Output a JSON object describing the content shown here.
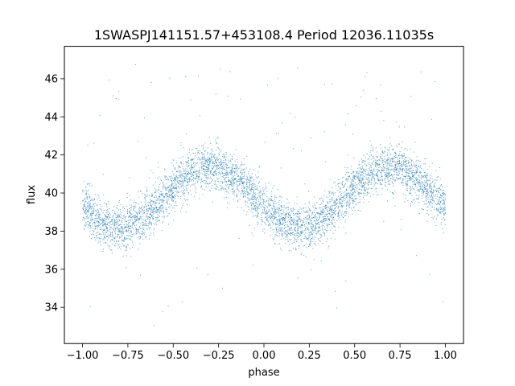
{
  "chart_data": {
    "type": "scatter",
    "title": "1SWASPJ141151.57+453108.4 Period 12036.11035s",
    "xlabel": "phase",
    "ylabel": "flux",
    "xlim": [
      -1.1,
      1.1
    ],
    "ylim": [
      32.1,
      47.7
    ],
    "xticks": [
      -1.0,
      -0.75,
      -0.5,
      -0.25,
      0.0,
      0.25,
      0.5,
      0.75,
      1.0
    ],
    "xtick_labels": [
      "−1.00",
      "−0.75",
      "−0.50",
      "−0.25",
      "0.00",
      "0.25",
      "0.50",
      "0.75",
      "1.00"
    ],
    "yticks": [
      34,
      36,
      38,
      40,
      42,
      44,
      46
    ],
    "ytick_labels": [
      "34",
      "36",
      "38",
      "40",
      "42",
      "44",
      "46"
    ],
    "grid": false,
    "marker_color": "#1f77b4",
    "light_curve_model": {
      "phase_range": [
        -1.0,
        1.0
      ],
      "mean_flux": 39.8,
      "amplitude": 1.6,
      "period_in_phase": 1.0,
      "phase_of_maximum": [
        -0.3,
        0.7
      ],
      "phase_of_minimum": [
        -0.8,
        0.2
      ],
      "scatter_std": 0.6,
      "outlier_flux_range": [
        32.8,
        47.0
      ]
    }
  }
}
